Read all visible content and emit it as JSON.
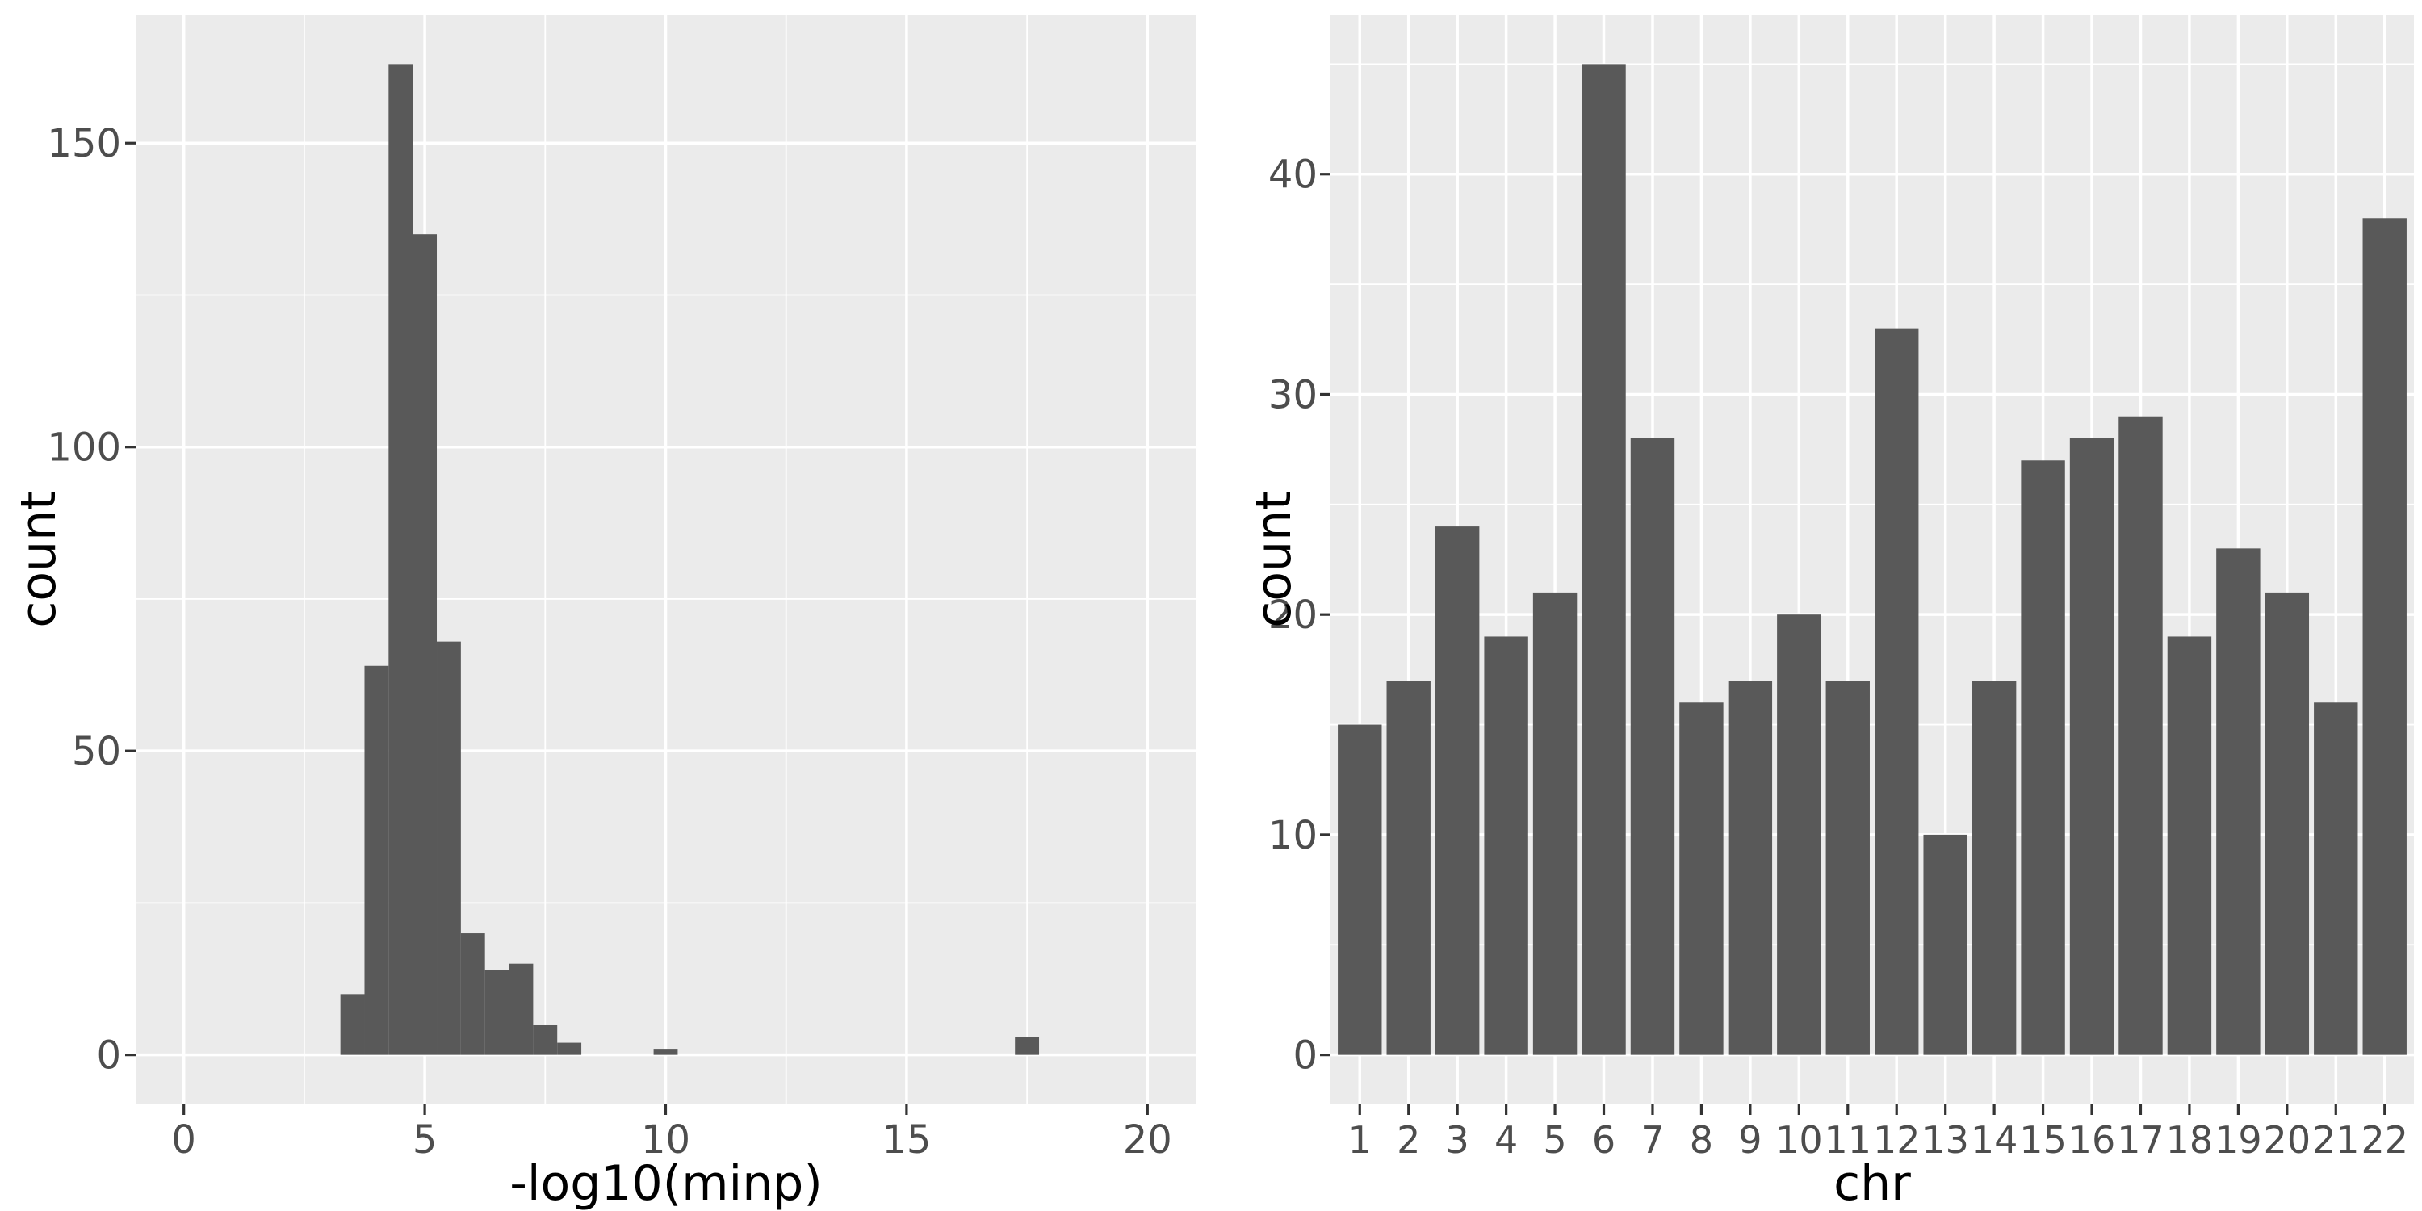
{
  "figure": {
    "description_visible_text_only": true,
    "background": "#FFFFFF"
  },
  "style": {
    "panel_background": "#EBEBEB",
    "grid_major_color": "#FFFFFF",
    "grid_minor_color": "#FFFFFF",
    "bar_fill": "#595959",
    "tick_mark_color": "#333333",
    "tick_label_color": "#4D4D4D",
    "axis_title_color": "#000000"
  },
  "chart_data": [
    {
      "type": "bar",
      "subtype": "histogram",
      "title": "",
      "xlabel": "-log10(minp)",
      "ylabel": "count",
      "bin_width": 0.5,
      "bin_centers": [
        3.5,
        4.0,
        4.5,
        5.0,
        5.5,
        6.0,
        6.5,
        7.0,
        7.5,
        8.0,
        10.0,
        17.5
      ],
      "values": [
        10,
        64,
        163,
        135,
        68,
        20,
        14,
        15,
        5,
        2,
        1,
        3
      ],
      "xlim": [
        -1,
        21
      ],
      "ylim": [
        -8.15,
        171.15
      ],
      "x_ticks": [
        0,
        5,
        10,
        15,
        20
      ],
      "x_tick_labels": [
        "0",
        "5",
        "10",
        "15",
        "20"
      ],
      "x_minor": [
        2.5,
        7.5,
        12.5,
        17.5
      ],
      "y_ticks": [
        0,
        50,
        100,
        150
      ],
      "y_tick_labels": [
        "0",
        "50",
        "100",
        "150"
      ],
      "y_minor": [
        25,
        75,
        125
      ],
      "grid": true,
      "legend": "none"
    },
    {
      "type": "bar",
      "subtype": "discrete-bar",
      "title": "",
      "xlabel": "chr",
      "ylabel": "count",
      "categories": [
        "1",
        "2",
        "3",
        "4",
        "5",
        "6",
        "7",
        "8",
        "9",
        "10",
        "11",
        "12",
        "13",
        "14",
        "15",
        "16",
        "17",
        "18",
        "19",
        "20",
        "21",
        "22"
      ],
      "values": [
        15,
        17,
        24,
        19,
        21,
        45,
        28,
        16,
        17,
        20,
        17,
        33,
        10,
        17,
        27,
        28,
        29,
        19,
        23,
        21,
        16,
        38
      ],
      "ylim": [
        -2.25,
        47.25
      ],
      "y_ticks": [
        0,
        10,
        20,
        30,
        40
      ],
      "y_tick_labels": [
        "0",
        "10",
        "20",
        "30",
        "40"
      ],
      "y_minor": [
        5,
        15,
        25,
        35,
        45
      ],
      "bar_rel_width": 0.9,
      "grid": true,
      "legend": "none"
    }
  ]
}
